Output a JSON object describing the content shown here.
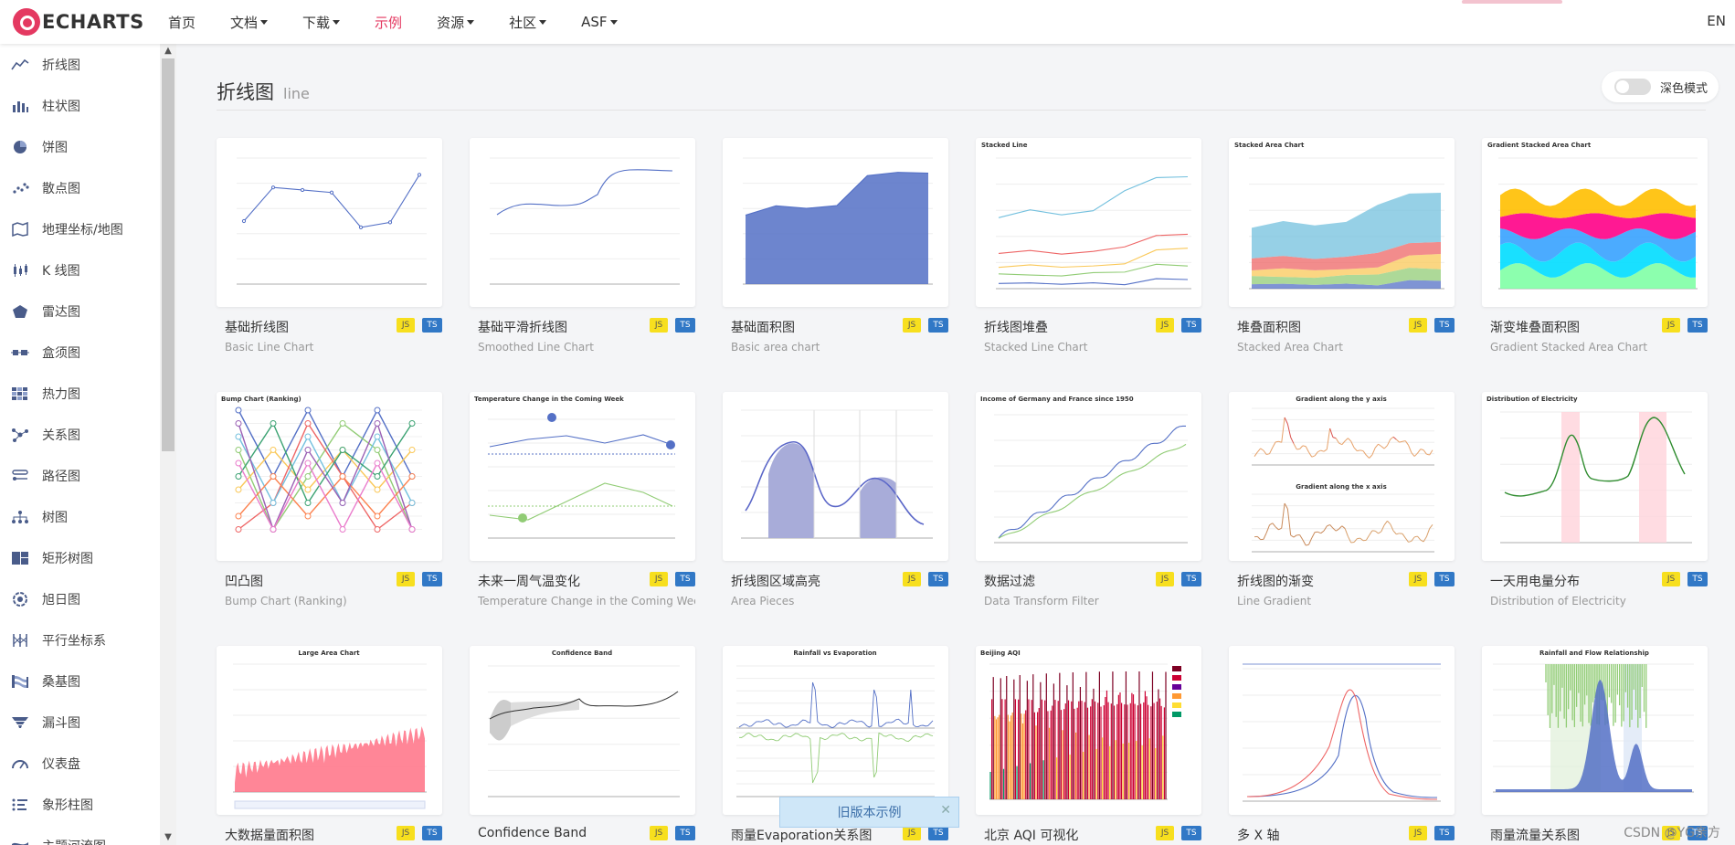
{
  "header": {
    "logo_text": "ECHARTS",
    "nav": [
      {
        "label": "首页",
        "dropdown": false,
        "active": false
      },
      {
        "label": "文档",
        "dropdown": true,
        "active": false
      },
      {
        "label": "下载",
        "dropdown": true,
        "active": false
      },
      {
        "label": "示例",
        "dropdown": false,
        "active": true
      },
      {
        "label": "资源",
        "dropdown": true,
        "active": false
      },
      {
        "label": "社区",
        "dropdown": true,
        "active": false
      },
      {
        "label": "ASF",
        "dropdown": true,
        "active": false
      }
    ],
    "lang": "EN"
  },
  "sidebar": {
    "items": [
      {
        "label": "折线图",
        "icon": "line-chart-icon"
      },
      {
        "label": "柱状图",
        "icon": "bar-chart-icon"
      },
      {
        "label": "饼图",
        "icon": "pie-chart-icon"
      },
      {
        "label": "散点图",
        "icon": "scatter-icon"
      },
      {
        "label": "地理坐标/地图",
        "icon": "map-icon"
      },
      {
        "label": "K 线图",
        "icon": "candlestick-icon"
      },
      {
        "label": "雷达图",
        "icon": "radar-icon"
      },
      {
        "label": "盒须图",
        "icon": "boxplot-icon"
      },
      {
        "label": "热力图",
        "icon": "heatmap-icon"
      },
      {
        "label": "关系图",
        "icon": "graph-icon"
      },
      {
        "label": "路径图",
        "icon": "lines-icon"
      },
      {
        "label": "树图",
        "icon": "tree-icon"
      },
      {
        "label": "矩形树图",
        "icon": "treemap-icon"
      },
      {
        "label": "旭日图",
        "icon": "sunburst-icon"
      },
      {
        "label": "平行坐标系",
        "icon": "parallel-icon"
      },
      {
        "label": "桑基图",
        "icon": "sankey-icon"
      },
      {
        "label": "漏斗图",
        "icon": "funnel-icon"
      },
      {
        "label": "仪表盘",
        "icon": "gauge-icon"
      },
      {
        "label": "象形柱图",
        "icon": "pictorial-bar-icon"
      },
      {
        "label": "主题河流图",
        "icon": "theme-river-icon"
      }
    ]
  },
  "main": {
    "title_cn": "折线图",
    "title_en": "line",
    "dark_mode_label": "深色模式",
    "old_version_label": "旧版本示例",
    "badge_js": "JS",
    "badge_ts": "TS",
    "cards": [
      {
        "title": "基础折线图",
        "subtitle": "Basic Line Chart",
        "thumb": "basic-line"
      },
      {
        "title": "基础平滑折线图",
        "subtitle": "Smoothed Line Chart",
        "thumb": "smooth-line"
      },
      {
        "title": "基础面积图",
        "subtitle": "Basic area chart",
        "thumb": "basic-area"
      },
      {
        "title": "折线图堆叠",
        "subtitle": "Stacked Line Chart",
        "thumb": "stacked-line"
      },
      {
        "title": "堆叠面积图",
        "subtitle": "Stacked Area Chart",
        "thumb": "stacked-area"
      },
      {
        "title": "渐变堆叠面积图",
        "subtitle": "Gradient Stacked Area Chart",
        "thumb": "gradient-stacked"
      },
      {
        "title": "凹凸图",
        "subtitle": "Bump Chart (Ranking)",
        "thumb": "bump"
      },
      {
        "title": "未来一周气温变化",
        "subtitle": "Temperature Change in the Coming Week",
        "thumb": "temperature"
      },
      {
        "title": "折线图区域高亮",
        "subtitle": "Area Pieces",
        "thumb": "area-pieces"
      },
      {
        "title": "数据过滤",
        "subtitle": "Data Transform Filter",
        "thumb": "transform-filter"
      },
      {
        "title": "折线图的渐变",
        "subtitle": "Line Gradient",
        "thumb": "line-gradient"
      },
      {
        "title": "一天用电量分布",
        "subtitle": "Distribution of Electricity",
        "thumb": "electricity"
      },
      {
        "title": "大数据量面积图",
        "subtitle": "",
        "thumb": "large-area"
      },
      {
        "title": "Confidence Band",
        "subtitle": "",
        "thumb": "confidence-band"
      },
      {
        "title": "雨量Evaporation关系图",
        "subtitle": "",
        "thumb": "rainfall-evaporation"
      },
      {
        "title": "北京 AQI 可视化",
        "subtitle": "",
        "thumb": "aqi"
      },
      {
        "title": "多 X 轴",
        "subtitle": "",
        "thumb": "multiple-x"
      },
      {
        "title": "雨量流量关系图",
        "subtitle": "",
        "thumb": "rain-flow"
      }
    ],
    "thumb_titles": {
      "stacked-line": "Stacked Line",
      "stacked-area": "Stacked Area Chart",
      "gradient-stacked": "Gradient Stacked Area Chart",
      "bump": "Bump Chart (Ranking)",
      "temperature": "Temperature Change in the Coming Week",
      "transform-filter": "Income of Germany and France since 1950",
      "line-gradient": "Gradient along the y axis",
      "line-gradient-2": "Gradient along the x axis",
      "electricity": "Distribution of Electricity",
      "large-area": "Large Area Chart",
      "confidence-band": "Confidence Band",
      "rainfall-evaporation": "Rainfall vs Evaporation",
      "aqi": "Beijing AQI",
      "rain-flow": "Rainfall and Flow Relationship"
    },
    "watermark": "CSDN @YG亲方"
  },
  "colors": {
    "accent": "#e43961",
    "series": [
      "#5470c6",
      "#91cc75",
      "#fac858",
      "#ee6666",
      "#73c0de",
      "#3ba272",
      "#fc8452",
      "#9a60b4",
      "#ea7ccc"
    ]
  }
}
